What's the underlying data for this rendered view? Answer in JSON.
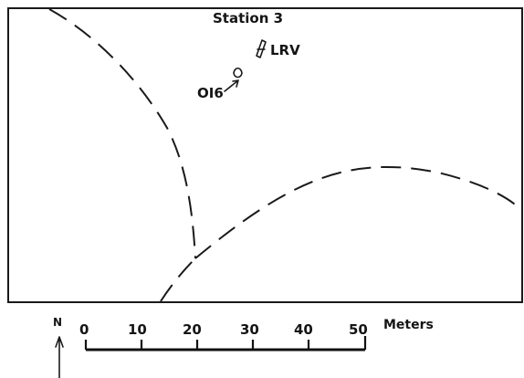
{
  "map": {
    "station_label": "Station 3",
    "lrv_label": "LRV",
    "sample_label": "OI6",
    "north_label": "N",
    "scale": {
      "ticks": [
        "0",
        "10",
        "20",
        "30",
        "40",
        "50"
      ],
      "unit": "Meters"
    }
  }
}
